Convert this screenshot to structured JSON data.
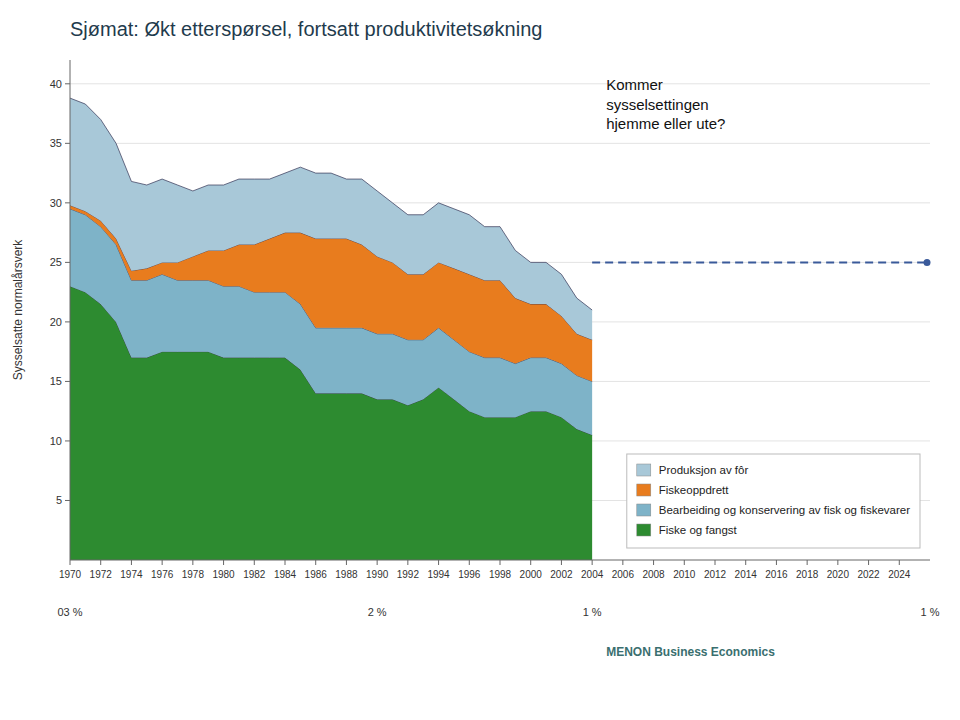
{
  "chart_data": {
    "type": "area",
    "stacked": true,
    "title": "Sjømat: Økt etterspørsel, fortsatt produktivitetsøkning",
    "ylabel": "Sysselsatte normalårsverk",
    "x": [
      1970,
      1971,
      1972,
      1973,
      1974,
      1975,
      1976,
      1977,
      1978,
      1979,
      1980,
      1981,
      1982,
      1983,
      1984,
      1985,
      1986,
      1987,
      1988,
      1989,
      1990,
      1991,
      1992,
      1993,
      1994,
      1995,
      1996,
      1997,
      1998,
      1999,
      2000,
      2001,
      2002,
      2003,
      2004
    ],
    "series": [
      {
        "name": "Fiske og fangst",
        "color": "#2D8B30",
        "values": [
          23.0,
          22.5,
          21.5,
          20.0,
          17.0,
          17.0,
          17.5,
          17.5,
          17.5,
          17.5,
          17.0,
          17.0,
          17.0,
          17.0,
          17.0,
          16.0,
          14.0,
          14.0,
          14.0,
          14.0,
          13.5,
          13.5,
          13.0,
          13.5,
          14.5,
          13.5,
          12.5,
          12.0,
          12.0,
          12.0,
          12.5,
          12.5,
          12.0,
          11.0,
          10.5
        ]
      },
      {
        "name": "Bearbeiding og konservering av fisk og fiskevarer",
        "color": "#7EB3C8",
        "values": [
          6.5,
          6.5,
          6.5,
          6.5,
          6.5,
          6.5,
          6.5,
          6.0,
          6.0,
          6.0,
          6.0,
          6.0,
          5.5,
          5.5,
          5.5,
          5.5,
          5.5,
          5.5,
          5.5,
          5.5,
          5.5,
          5.5,
          5.5,
          5.0,
          5.0,
          5.0,
          5.0,
          5.0,
          5.0,
          4.5,
          4.5,
          4.5,
          4.5,
          4.5,
          4.5
        ]
      },
      {
        "name": "Fiskeoppdrett",
        "color": "#E87C1E",
        "values": [
          0.3,
          0.3,
          0.5,
          0.5,
          0.8,
          1.0,
          1.0,
          1.5,
          2.0,
          2.5,
          3.0,
          3.5,
          4.0,
          4.5,
          5.0,
          6.0,
          7.5,
          7.5,
          7.5,
          7.0,
          6.5,
          6.0,
          5.5,
          5.5,
          5.5,
          6.0,
          6.5,
          6.5,
          6.5,
          5.5,
          4.5,
          4.5,
          4.0,
          3.5,
          3.5
        ]
      },
      {
        "name": "Produksjon av fôr",
        "color": "#A8C8D8",
        "values": [
          9.0,
          9.0,
          8.5,
          8.0,
          7.5,
          7.0,
          7.0,
          6.5,
          5.5,
          5.5,
          5.5,
          5.5,
          5.5,
          5.0,
          5.0,
          5.5,
          5.5,
          5.5,
          5.0,
          5.5,
          5.5,
          5.0,
          5.0,
          5.0,
          5.0,
          5.0,
          5.0,
          4.5,
          4.5,
          4.0,
          3.5,
          3.5,
          3.5,
          3.0,
          2.5
        ]
      }
    ],
    "xlim": [
      1970,
      2026
    ],
    "xticks": [
      1970,
      1972,
      1974,
      1976,
      1978,
      1980,
      1982,
      1984,
      1986,
      1988,
      1990,
      1992,
      1994,
      1996,
      1998,
      2000,
      2002,
      2004,
      2006,
      2008,
      2010,
      2012,
      2014,
      2016,
      2018,
      2020,
      2022,
      2024
    ],
    "ylim": [
      0,
      42
    ],
    "yticks": [
      5,
      10,
      15,
      20,
      25,
      30,
      35,
      40
    ],
    "grid": true,
    "legend": "lower right",
    "annotations": [
      {
        "text": "Kommer\nsysselsettingen\nhjemme eller ute?"
      }
    ],
    "reference_lines": [
      {
        "value": 25.0,
        "color": "#3A5A9A",
        "line_style": "dashed"
      }
    ],
    "bottom_labels": [
      {
        "x": 1970,
        "text": "03 %"
      },
      {
        "x": 1990,
        "text": "2 %"
      },
      {
        "x": 2004,
        "text": "1 %"
      },
      {
        "x": 2026,
        "text": "1 %"
      }
    ],
    "source": "MENON Business Economics"
  }
}
